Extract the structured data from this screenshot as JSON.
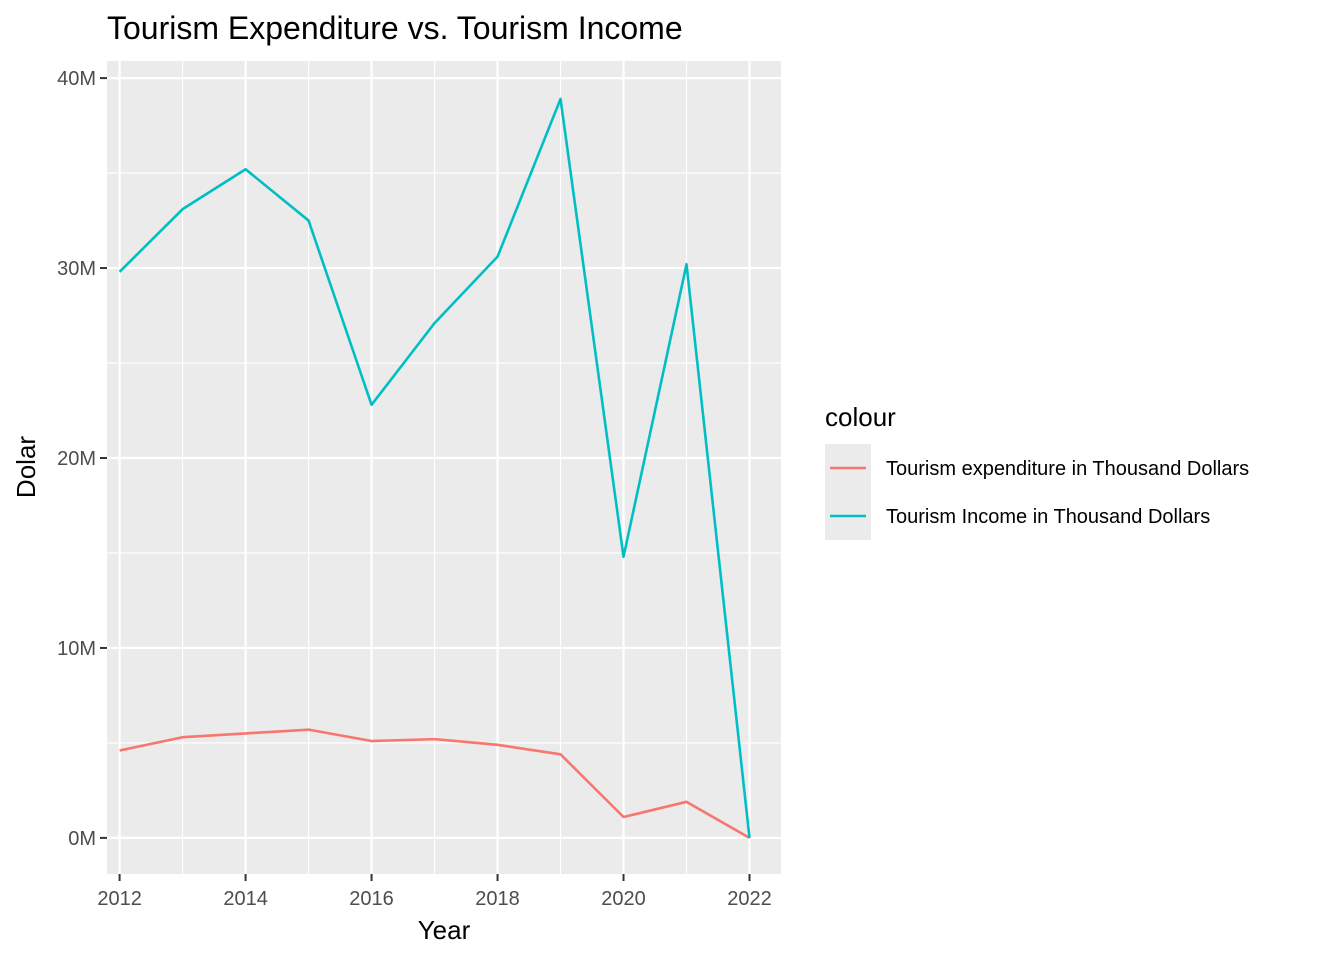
{
  "chart_data": {
    "type": "line",
    "title": "Tourism Expenditure vs. Tourism Income",
    "xlabel": "Year",
    "ylabel": "Dolar",
    "x": [
      2012,
      2013,
      2014,
      2015,
      2016,
      2017,
      2018,
      2019,
      2020,
      2021,
      2022
    ],
    "xlim": [
      2011.8,
      2022.5
    ],
    "ylim": [
      -1.9,
      40.9
    ],
    "x_ticks": [
      2012,
      2014,
      2016,
      2018,
      2020,
      2022
    ],
    "x_tick_labels": [
      "2012",
      "2014",
      "2016",
      "2018",
      "2020",
      "2022"
    ],
    "y_ticks": [
      0,
      10,
      20,
      30,
      40
    ],
    "y_tick_labels": [
      "0M",
      "10M",
      "20M",
      "30M",
      "40M"
    ],
    "grid": true,
    "legend": {
      "title": "colour",
      "position": "right"
    },
    "series": [
      {
        "name": "Tourism expenditure in Thousand Dollars",
        "color": "#F8766D",
        "values": [
          4.6,
          5.3,
          5.5,
          5.7,
          5.1,
          5.2,
          4.9,
          4.4,
          1.1,
          1.9,
          0.0
        ]
      },
      {
        "name": "Tourism Income in Thousand Dollars",
        "color": "#00BFC4",
        "values": [
          29.8,
          33.1,
          35.2,
          32.5,
          22.8,
          27.1,
          30.6,
          38.9,
          14.8,
          30.2,
          0.0
        ]
      }
    ]
  }
}
